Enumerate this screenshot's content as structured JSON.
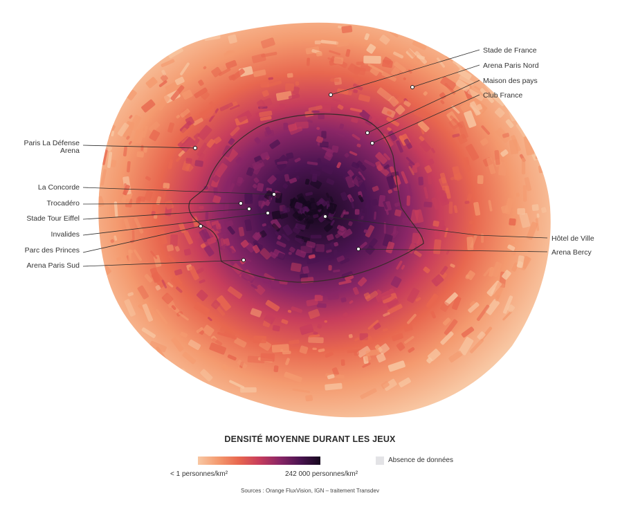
{
  "colors": {
    "scale": [
      "#f8c8a4",
      "#f49a6f",
      "#e8674f",
      "#c73d5c",
      "#8a2666",
      "#4b1451",
      "#16081e"
    ],
    "no_data": "#e3e3e6",
    "boundary": "#3a2a2a"
  },
  "labels": {
    "stade_de_france": "Stade de France",
    "arena_paris_nord": "Arena Paris Nord",
    "maison_des_pays": "Maison des pays",
    "club_france": "Club France",
    "hotel_de_ville": "Hôtel de Ville",
    "arena_bercy": "Arena Bercy",
    "paris_la_defense_1": "Paris La Défense",
    "paris_la_defense_2": "Arena",
    "la_concorde": "La Concorde",
    "trocadero": "Trocadéro",
    "stade_tour_eiffel": "Stade Tour Eiffel",
    "invalides": "Invalides",
    "parc_des_princes": "Parc des Princes",
    "arena_paris_sud": "Arena Paris Sud"
  },
  "legend": {
    "title": "DENSITÉ MOYENNE DURANT LES JEUX",
    "min_label": "< 1 personnes/km²",
    "max_label": "242 000 personnes/km²",
    "no_data_label": "Absence de données"
  },
  "sources": "Sources : Orange FluxVision, IGN – traitement Transdev"
}
